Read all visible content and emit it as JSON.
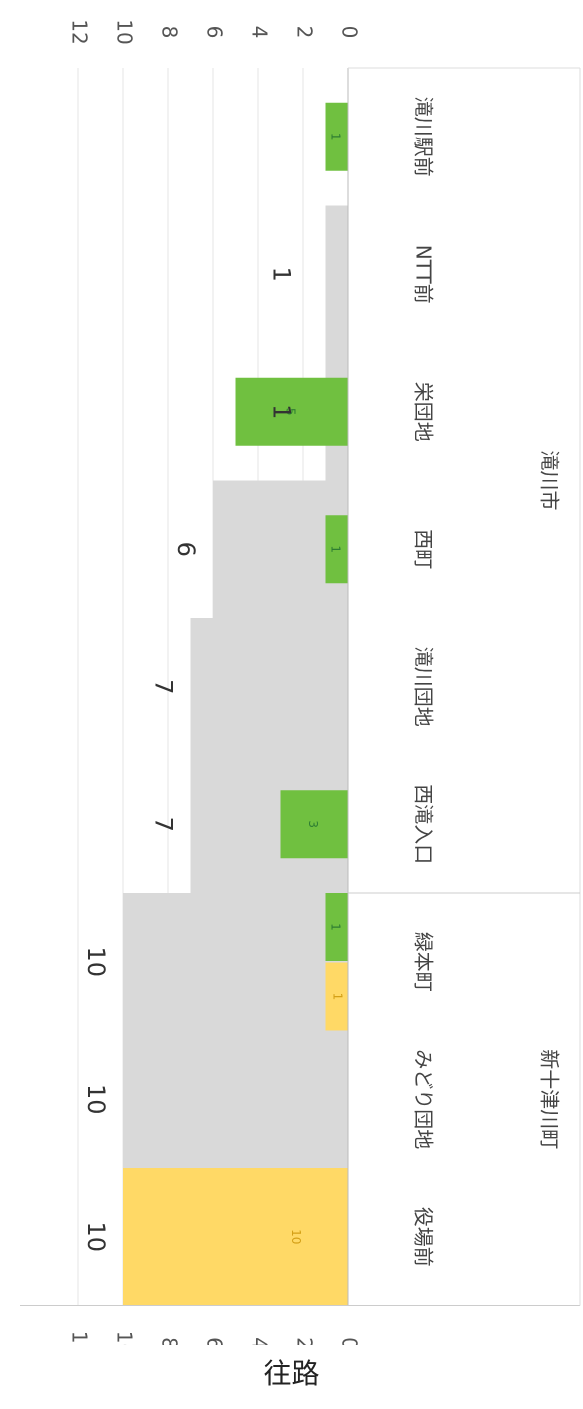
{
  "caption": "往路",
  "chart_data": {
    "type": "bar",
    "orientation": "rotated-90-clockwise",
    "title": "",
    "xlabel": "",
    "ylabel": "",
    "ylim": [
      0,
      12
    ],
    "yticks": [
      0,
      2,
      4,
      6,
      8,
      10,
      12
    ],
    "grid": true,
    "categories": [
      "役場前",
      "みどり団地",
      "緑本町",
      "西滝入口",
      "滝川団地",
      "西町",
      "栄団地",
      "NTT前",
      "滝川駅前"
    ],
    "groups": [
      {
        "label": "新十津川町",
        "categories": [
          "役場前",
          "みどり団地",
          "緑本町"
        ]
      },
      {
        "label": "滝川市",
        "categories": [
          "西滝入口",
          "滝川団地",
          "西町",
          "栄団地",
          "NTT前",
          "滝川駅前"
        ]
      }
    ],
    "series": [
      {
        "role": "onboard",
        "color": "#d9d9d9",
        "values": [
          10,
          10,
          10,
          7,
          7,
          6,
          1,
          1,
          0
        ],
        "labels": [
          "10",
          "10",
          "10",
          "7",
          "7",
          "6",
          "1",
          "1",
          ""
        ]
      },
      {
        "role": "boarding",
        "color": "#ffd966",
        "values": [
          10,
          0,
          1,
          0,
          0,
          0,
          0,
          0,
          0
        ],
        "labels": [
          "10",
          "",
          "1",
          "",
          "",
          "",
          "",
          "",
          ""
        ]
      },
      {
        "role": "alighting",
        "color": "#70c040",
        "values": [
          0,
          0,
          1,
          3,
          0,
          1,
          5,
          0,
          1
        ],
        "labels": [
          "",
          "",
          "1",
          "3",
          "",
          "1",
          "5",
          "",
          "1"
        ]
      }
    ]
  }
}
